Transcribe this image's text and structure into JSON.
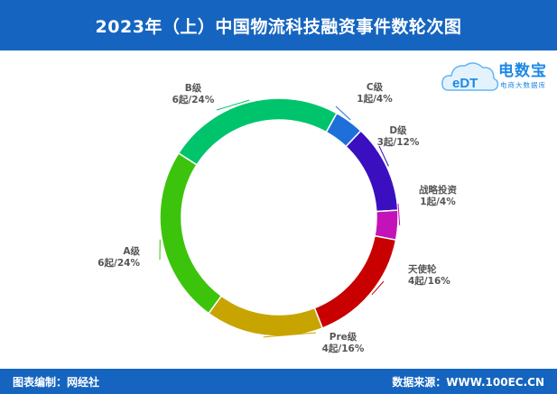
{
  "header": {
    "title": "2023年（上）中国物流科技融资事件数轮次图"
  },
  "footer": {
    "left": "图表编制：网经社",
    "right": "数据来源：WWW.100EC.CN"
  },
  "logo": {
    "name": "电数宝",
    "subtitle": "电商大数据库",
    "mark": "eDT",
    "color": "#1e88e5"
  },
  "chart_data": {
    "type": "pie",
    "donut": true,
    "unit": "起",
    "slices": [
      {
        "name": "C级",
        "value": 1,
        "percent": "4%",
        "label": "1起/4%",
        "color": "#1e6fd9"
      },
      {
        "name": "D级",
        "value": 3,
        "percent": "12%",
        "label": "3起/12%",
        "color": "#3a0fc0"
      },
      {
        "name": "战略投资",
        "value": 1,
        "percent": "4%",
        "label": "1起/4%",
        "color": "#c512b8"
      },
      {
        "name": "天使轮",
        "value": 4,
        "percent": "16%",
        "label": "4起/16%",
        "color": "#c80000"
      },
      {
        "name": "Pre级",
        "value": 4,
        "percent": "16%",
        "label": "4起/16%",
        "color": "#c8a400"
      },
      {
        "name": "A级",
        "value": 6,
        "percent": "24%",
        "label": "6起/24%",
        "color": "#3cc40c"
      },
      {
        "name": "B级",
        "value": 6,
        "percent": "24%",
        "label": "6起/24%",
        "color": "#00c46c"
      }
    ]
  }
}
